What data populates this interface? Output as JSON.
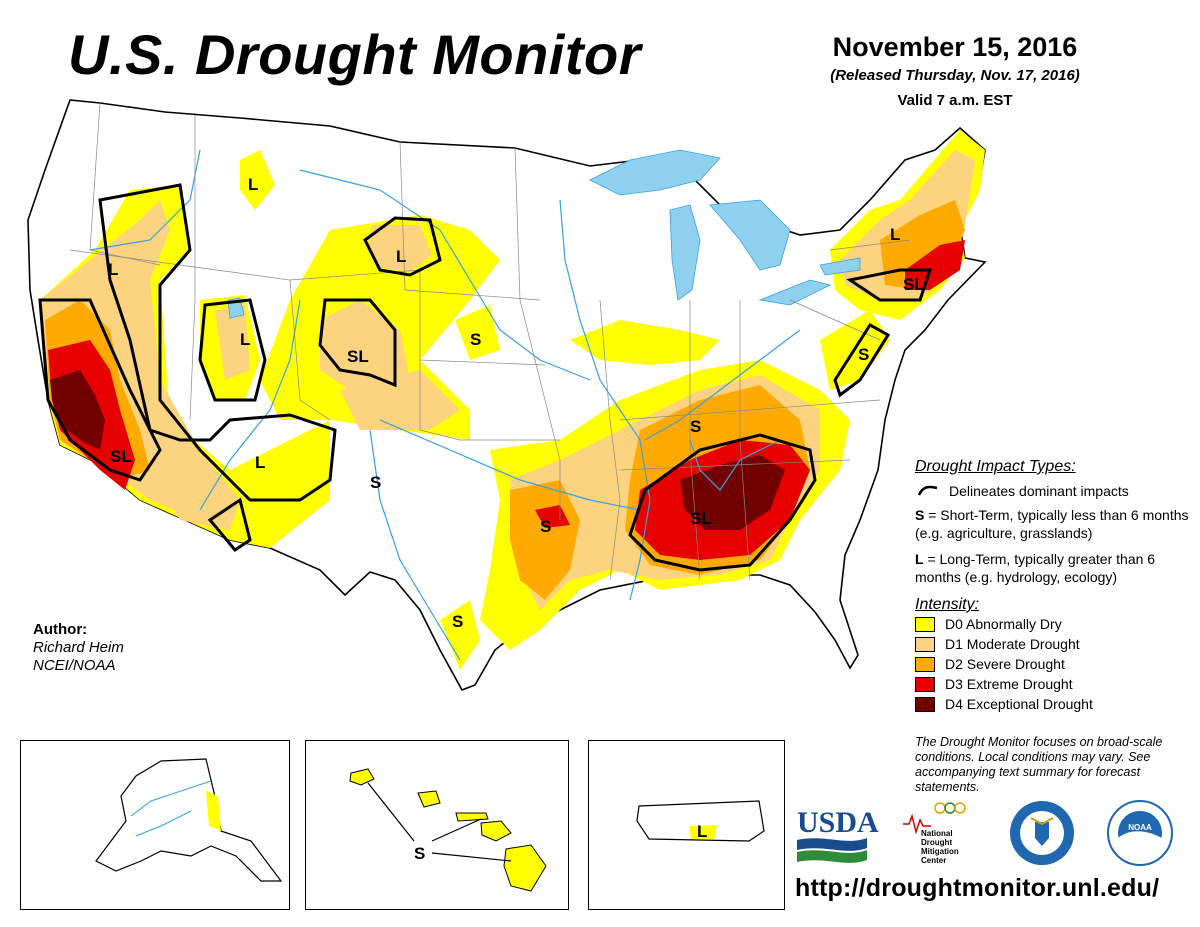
{
  "header": {
    "title": "U.S. Drought Monitor",
    "date": "November 15, 2016",
    "released": "(Released Thursday, Nov. 17, 2016)",
    "valid": "Valid 7 a.m. EST"
  },
  "legend": {
    "impact_title": "Drought Impact Types:",
    "delineates": "Delineates dominant impacts",
    "short_term_letter": "S",
    "short_term_text": "= Short-Term, typically less than 6 months (e.g. agriculture, grasslands)",
    "long_term_letter": "L",
    "long_term_text": "= Long-Term, typically greater than 6 months (e.g. hydrology, ecology)",
    "intensity_title": "Intensity:",
    "items": [
      {
        "label": "D0 Abnormally Dry",
        "color": "#ffff00"
      },
      {
        "label": "D1 Moderate Drought",
        "color": "#fcd37f"
      },
      {
        "label": "D2 Severe Drought",
        "color": "#ffaa00"
      },
      {
        "label": "D3 Extreme Drought",
        "color": "#e60000"
      },
      {
        "label": "D4 Exceptional Drought",
        "color": "#730000"
      }
    ]
  },
  "note": "The Drought Monitor focuses on broad-scale conditions. Local conditions may vary. See accompanying text summary for forecast statements.",
  "author": {
    "label": "Author:",
    "name": "Richard Heim",
    "org": "NCEI/NOAA"
  },
  "map_labels": {
    "montana": "L",
    "oregon": "L",
    "idaho_utah": "L",
    "wyoming": "SL",
    "black_hills": "L",
    "nebraska": "S",
    "california": "SL",
    "nevada_arizona": "L",
    "new_mexico": "S",
    "oklahoma": "S",
    "texas": "S",
    "kentucky": "S",
    "southeast": "SL",
    "new_york": "L",
    "southern_new_england": "SL",
    "virginia": "S",
    "hawaii": "S",
    "puerto_rico": "L"
  },
  "logos": {
    "usda": "USDA",
    "ndmc_line1": "National",
    "ndmc_line2": "Drought",
    "ndmc_line3": "Mitigation",
    "ndmc_line4": "Center",
    "commerce": "DEPARTMENT OF COMMERCE",
    "noaa": "NOAA"
  },
  "url": "http://droughtmonitor.unl.edu/",
  "colors": {
    "water": "#8fd0ee",
    "river": "#3aa0e0",
    "d0": "#ffff00",
    "d1": "#fcd37f",
    "d2": "#ffaa00",
    "d3": "#e60000",
    "d4": "#730000"
  }
}
